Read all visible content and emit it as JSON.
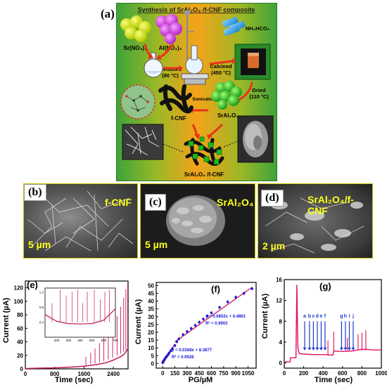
{
  "panel_a": {
    "label": "(a)",
    "title": "Synthesis of SrAl₂O₄ /f-CNF composite",
    "labels": {
      "sr": "Sr(NO₃)₂",
      "al": "Al(NO₃)₃",
      "nh": "NH₄HCO₃",
      "refluxed": "Refluxed",
      "refluxed_temp": "(80 °C)",
      "calcined": "Calcined",
      "calcined_temp": "(450 °C)",
      "dried": "Dried",
      "dried_temp": "(110 °C)",
      "sonication": "Sonication",
      "fcnf": "f-CNF",
      "sral": "SrAl₂O₄",
      "composite": "SrAl₂O₄ /f-CNF"
    },
    "colors": {
      "bg_left": "#3fa33a",
      "bg_mid": "#f4a31a",
      "bg_right": "#3fa33a",
      "arrow": "#e8321b"
    }
  },
  "panel_b": {
    "label": "(b)",
    "title": "f-CNF",
    "scale": "5 µm"
  },
  "panel_c": {
    "label": "(c)",
    "title": "SrAl₂O₄",
    "scale": "5 µm"
  },
  "panel_d": {
    "label": "(d)",
    "title": "SrAl₂O₄/f-CNF",
    "scale": "2 µm"
  },
  "panel_e": {
    "label": "(e)",
    "xlabel": "Time (sec)",
    "ylabel": "Current (µA)"
  },
  "panel_f": {
    "label": "(f)",
    "xlabel": "PG/µM",
    "ylabel": "Current (µA)",
    "eq1": "y = 0.0802x + 0.4861",
    "r1": "R² = 0.9903",
    "eq2": "y = 0.0368x + 8.3877",
    "r2": "R² = 0.9928"
  },
  "panel_g": {
    "label": "(g)",
    "xlabel": "Time (sec)",
    "ylabel": "Current (µA)",
    "markers": [
      "a",
      "b",
      "c",
      "d",
      "e",
      "f",
      "g",
      "h",
      "i",
      "j"
    ]
  },
  "chart_data": [
    {
      "type": "line",
      "panel": "e",
      "xlabel": "Time (sec)",
      "ylabel": "Current (µA)",
      "xlim": [
        0,
        2800
      ],
      "ylim": [
        0,
        130
      ],
      "xticks": [
        0,
        800,
        1600,
        2400
      ],
      "yticks": [
        0,
        20,
        40,
        60,
        80,
        100,
        120
      ],
      "color": "#c2185b",
      "series": [
        {
          "x": [
            0,
            400,
            800,
            1200,
            1600,
            1900,
            2200,
            2400,
            2600,
            2700,
            2800
          ],
          "y": [
            0.5,
            1,
            1.5,
            2.5,
            4,
            6,
            9,
            13,
            18,
            22,
            30
          ]
        }
      ],
      "spikes": [
        {
          "x": 1650,
          "y": 18
        },
        {
          "x": 1780,
          "y": 24
        },
        {
          "x": 1900,
          "y": 30
        },
        {
          "x": 2020,
          "y": 38
        },
        {
          "x": 2140,
          "y": 46
        },
        {
          "x": 2260,
          "y": 55
        },
        {
          "x": 2380,
          "y": 66
        },
        {
          "x": 2500,
          "y": 78
        },
        {
          "x": 2600,
          "y": 92
        },
        {
          "x": 2680,
          "y": 105
        },
        {
          "x": 2740,
          "y": 118
        },
        {
          "x": 2790,
          "y": 125
        }
      ],
      "inset": {
        "xlim": [
          100,
          700
        ],
        "ylim": [
          0,
          1.3
        ],
        "xticks": [
          200,
          300,
          400,
          500,
          600,
          700
        ],
        "yticks": [
          0.4,
          0.8,
          1.2
        ],
        "x": [
          100,
          200,
          300,
          400,
          500,
          600,
          700
        ],
        "y": [
          0.6,
          0.42,
          0.36,
          0.35,
          0.36,
          0.45,
          0.75
        ],
        "spikes": [
          {
            "x": 160,
            "y": 0.9
          },
          {
            "x": 230,
            "y": 1.25
          },
          {
            "x": 280,
            "y": 1.1
          },
          {
            "x": 330,
            "y": 1.2
          },
          {
            "x": 380,
            "y": 1.25
          },
          {
            "x": 420,
            "y": 0.9
          },
          {
            "x": 460,
            "y": 1.2
          },
          {
            "x": 520,
            "y": 1.25
          },
          {
            "x": 570,
            "y": 1.0
          },
          {
            "x": 610,
            "y": 1.2
          },
          {
            "x": 650,
            "y": 1.25
          }
        ]
      }
    },
    {
      "type": "scatter",
      "panel": "f",
      "xlabel": "PG/µM",
      "ylabel": "Current (µA)",
      "xlim": [
        -80,
        1150
      ],
      "ylim": [
        -3,
        52
      ],
      "xticks": [
        0,
        150,
        300,
        450,
        600,
        750,
        900,
        1050
      ],
      "yticks": [
        0,
        5,
        10,
        15,
        20,
        25,
        30,
        35,
        40,
        45,
        50
      ],
      "points": {
        "x": [
          0.5,
          1,
          2,
          4,
          6,
          8,
          10,
          15,
          20,
          25,
          30,
          40,
          50,
          60,
          70,
          80,
          100,
          120,
          150,
          175,
          200,
          250,
          300,
          350,
          400,
          450,
          500,
          550,
          600,
          700,
          800,
          900,
          1000,
          1100
        ],
        "y": [
          0.5,
          0.6,
          0.7,
          0.9,
          1.1,
          1.3,
          1.5,
          1.9,
          2.3,
          2.8,
          3.2,
          4.0,
          4.5,
          5.2,
          6.0,
          6.8,
          8.2,
          9.5,
          11.5,
          14,
          15.8,
          18.5,
          20.5,
          22.5,
          24.5,
          26.5,
          28.5,
          30.5,
          32.5,
          36,
          39.5,
          42.5,
          45,
          48
        ]
      },
      "fits": [
        {
          "name": "y = 0.0802x + 0.4861",
          "x": [
            0,
            150
          ],
          "y": [
            0.49,
            12.5
          ]
        },
        {
          "name": "y = 0.0368x + 8.3877",
          "x": [
            150,
            1100
          ],
          "y": [
            13.9,
            48.9
          ]
        }
      ],
      "point_color": "#1a1adb",
      "fit_color": "#c2185b"
    },
    {
      "type": "line",
      "panel": "g",
      "xlabel": "Time (sec)",
      "ylabel": "Current (µA)",
      "xlim": [
        0,
        1000
      ],
      "ylim": [
        -1,
        16
      ],
      "xticks": [
        0,
        200,
        400,
        600,
        800,
        1000
      ],
      "yticks": [
        0,
        4,
        8,
        12,
        16
      ],
      "color": "#e0115f",
      "series": [
        {
          "x": [
            0,
            60,
            65,
            120,
            130,
            140,
            150,
            160,
            200,
            300,
            400,
            500,
            510,
            600,
            700,
            800,
            850,
            900,
            1000
          ],
          "y": [
            0.2,
            0.2,
            1.0,
            1.0,
            15,
            3.0,
            2.0,
            1.8,
            1.7,
            1.6,
            1.6,
            1.5,
            2.3,
            2.2,
            2.3,
            2.6,
            2.6,
            2.5,
            2.5
          ]
        }
      ],
      "spikes": [
        {
          "x": 450,
          "y": 4.3
        },
        {
          "x": 510,
          "y": 6.0
        },
        {
          "x": 650,
          "y": 4.8
        },
        {
          "x": 760,
          "y": 5.5
        },
        {
          "x": 800,
          "y": 5.8
        },
        {
          "x": 840,
          "y": 6.3
        }
      ],
      "markers": {
        "labels": [
          "a",
          "b",
          "c",
          "d",
          "e",
          "f",
          "g",
          "h",
          "i",
          "j"
        ],
        "x": [
          210,
          260,
          300,
          340,
          380,
          420,
          590,
          630,
          670,
          710
        ]
      }
    }
  ]
}
